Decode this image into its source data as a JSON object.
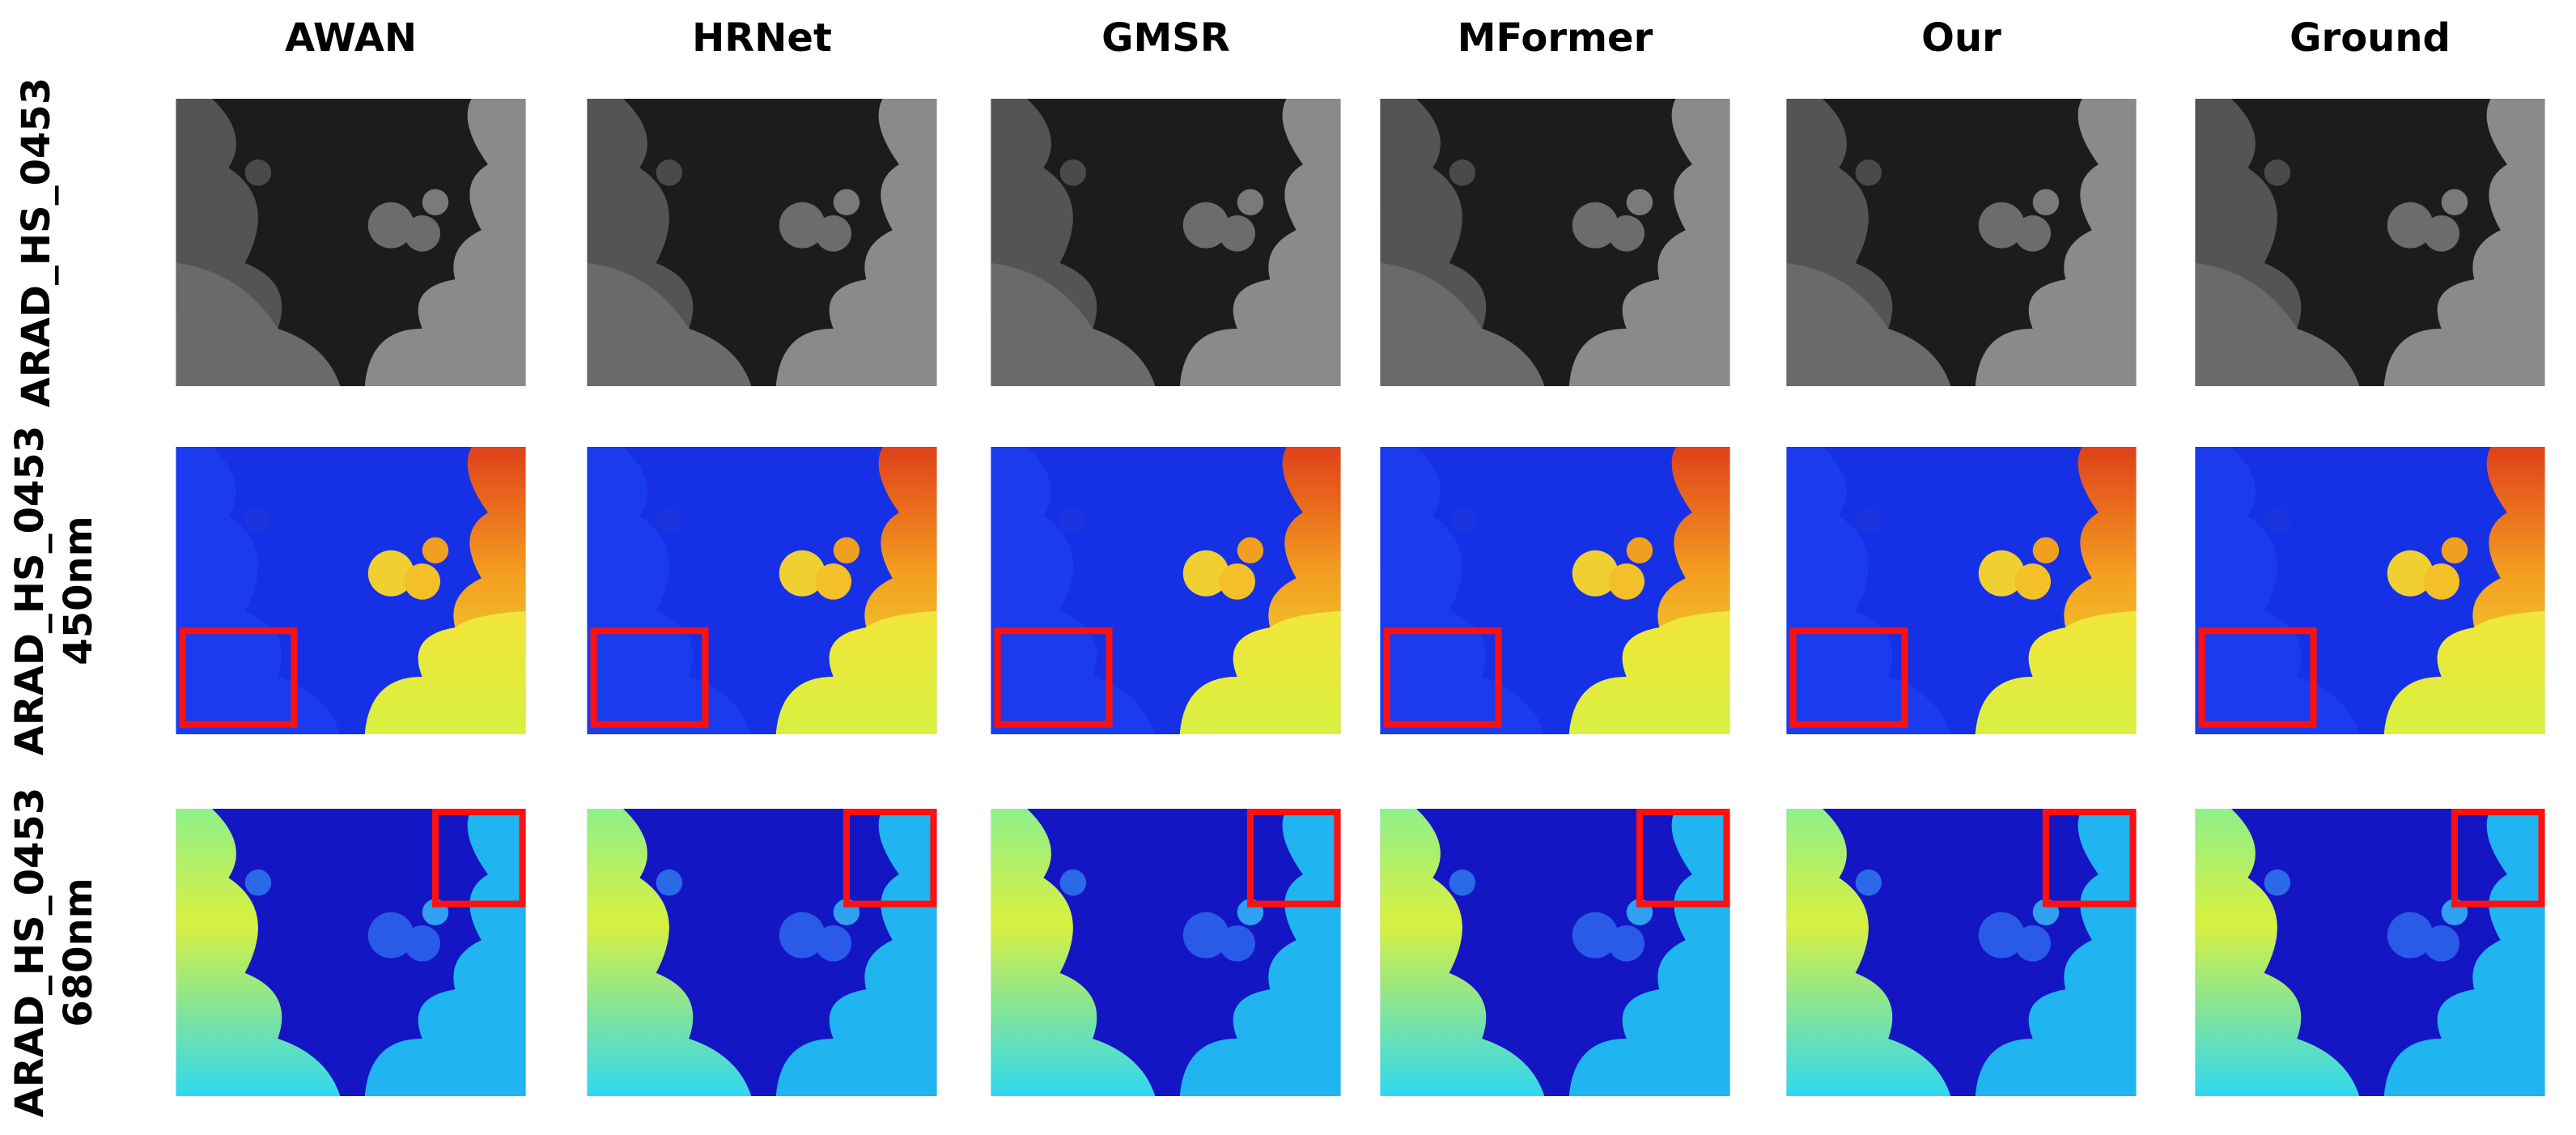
{
  "columns": [
    "AWAN",
    "HRNet",
    "GMSR",
    "MFormer",
    "Our",
    "Ground"
  ],
  "rows": [
    {
      "label": "ARAD_HS_0453"
    },
    {
      "label": "ARAD_HS_0453",
      "wavelength": "450nm"
    },
    {
      "label": "ARAD_HS_0453",
      "wavelength": "680nm"
    }
  ]
}
